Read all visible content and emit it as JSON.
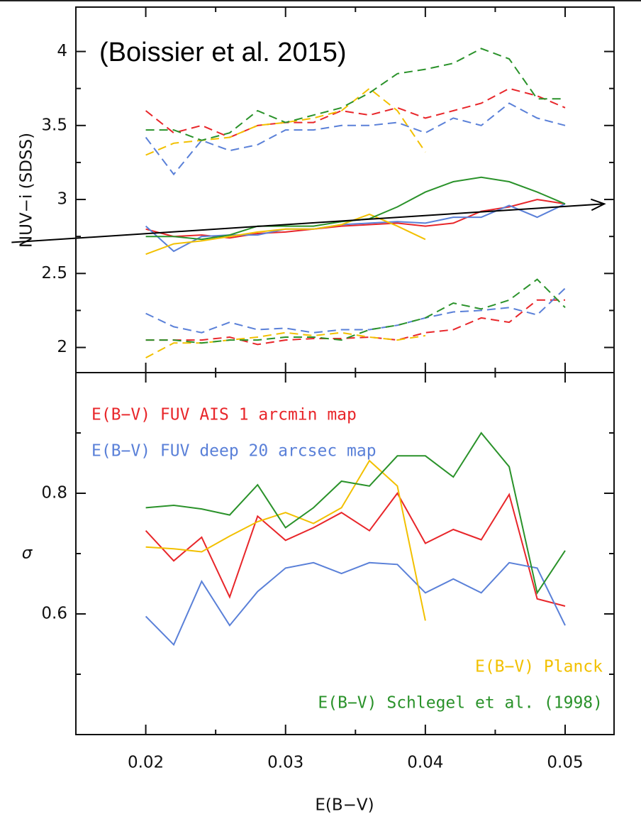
{
  "chart_data": [
    {
      "type": "line",
      "annotation": "(Boissier et al. 2015)",
      "y_label": "NUV−i (SDSS)",
      "xlim": [
        0.015,
        0.0535
      ],
      "ylim": [
        1.83,
        4.3
      ],
      "xticks": [
        0.02,
        0.03,
        0.04,
        0.05
      ],
      "xminorticks": [
        0.025,
        0.035,
        0.045
      ],
      "show_xtick_labels": false,
      "yticks": [
        2,
        2.5,
        3,
        3.5,
        4
      ],
      "yminorticks": [
        2.25,
        2.75,
        3.25,
        3.75
      ],
      "x": [
        0.02,
        0.022,
        0.024,
        0.026,
        0.028,
        0.03,
        0.032,
        0.034,
        0.036,
        0.038,
        0.04,
        0.042,
        0.044,
        0.046,
        0.048,
        0.05
      ],
      "series": [
        {
          "color": "#e8262a",
          "dash": true,
          "values": [
            3.6,
            3.45,
            3.5,
            3.42,
            3.5,
            3.52,
            3.52,
            3.6,
            3.57,
            3.62,
            3.55,
            3.6,
            3.65,
            3.75,
            3.7,
            3.62
          ]
        },
        {
          "color": "#5a80d8",
          "dash": true,
          "values": [
            3.42,
            3.17,
            3.4,
            3.33,
            3.37,
            3.47,
            3.47,
            3.5,
            3.5,
            3.52,
            3.45,
            3.55,
            3.5,
            3.65,
            3.55,
            3.5
          ]
        },
        {
          "color": "#f2c000",
          "dash": true,
          "values": [
            3.3,
            3.38,
            3.4,
            3.42,
            3.5,
            3.52,
            3.55,
            3.6,
            3.75,
            3.6,
            3.32,
            null,
            null,
            null,
            null,
            null
          ]
        },
        {
          "color": "#2a922a",
          "dash": true,
          "values": [
            3.47,
            3.47,
            3.4,
            3.45,
            3.6,
            3.52,
            3.57,
            3.62,
            3.72,
            3.85,
            3.88,
            3.92,
            4.02,
            3.95,
            3.68,
            3.68
          ]
        },
        {
          "color": "#e8262a",
          "dash": false,
          "values": [
            2.8,
            2.75,
            2.76,
            2.74,
            2.77,
            2.78,
            2.8,
            2.82,
            2.83,
            2.84,
            2.82,
            2.84,
            2.92,
            2.95,
            3.0,
            2.97
          ]
        },
        {
          "color": "#5a80d8",
          "dash": false,
          "values": [
            2.82,
            2.65,
            2.75,
            2.76,
            2.76,
            2.8,
            2.8,
            2.83,
            2.84,
            2.85,
            2.84,
            2.88,
            2.88,
            2.96,
            2.88,
            2.97
          ]
        },
        {
          "color": "#f2c000",
          "dash": false,
          "values": [
            2.63,
            2.7,
            2.72,
            2.75,
            2.78,
            2.8,
            2.8,
            2.83,
            2.9,
            2.82,
            2.73,
            null,
            null,
            null,
            null,
            null
          ]
        },
        {
          "color": "#2a922a",
          "dash": false,
          "values": [
            2.75,
            2.75,
            2.73,
            2.76,
            2.82,
            2.82,
            2.82,
            2.85,
            2.87,
            2.95,
            3.05,
            3.12,
            3.15,
            3.12,
            3.05,
            2.97
          ]
        },
        {
          "color": "#e8262a",
          "dash": true,
          "values": [
            2.05,
            2.05,
            2.05,
            2.07,
            2.02,
            2.05,
            2.06,
            2.06,
            2.07,
            2.05,
            2.1,
            2.12,
            2.2,
            2.17,
            2.32,
            2.32
          ]
        },
        {
          "color": "#5a80d8",
          "dash": true,
          "values": [
            2.23,
            2.14,
            2.1,
            2.17,
            2.12,
            2.13,
            2.1,
            2.12,
            2.12,
            2.15,
            2.2,
            2.24,
            2.25,
            2.27,
            2.22,
            2.4
          ]
        },
        {
          "color": "#f2c000",
          "dash": true,
          "values": [
            1.93,
            2.03,
            2.03,
            2.05,
            2.07,
            2.1,
            2.08,
            2.1,
            2.07,
            2.05,
            2.08,
            null,
            null,
            null,
            null,
            null
          ]
        },
        {
          "color": "#2a922a",
          "dash": true,
          "values": [
            2.05,
            2.05,
            2.03,
            2.05,
            2.05,
            2.07,
            2.07,
            2.05,
            2.12,
            2.15,
            2.2,
            2.3,
            2.26,
            2.32,
            2.46,
            2.27
          ]
        }
      ],
      "arrow": {
        "x": [
          0.0104,
          0.0528
        ],
        "y": [
          2.71,
          2.97
        ],
        "color": "#000000"
      }
    },
    {
      "type": "line",
      "x_label": "E(B−V)",
      "y_label": "σ",
      "xlim": [
        0.015,
        0.0535
      ],
      "ylim": [
        0.4,
        1.0
      ],
      "xticks": [
        0.02,
        0.03,
        0.04,
        0.05
      ],
      "xminorticks": [
        0.025,
        0.035,
        0.045
      ],
      "show_xtick_labels": true,
      "yticks": [
        0.6,
        0.8
      ],
      "yminorticks": [
        0.5,
        0.7,
        0.9
      ],
      "x": [
        0.02,
        0.022,
        0.024,
        0.026,
        0.028,
        0.03,
        0.032,
        0.034,
        0.036,
        0.038,
        0.04,
        0.042,
        0.044,
        0.046,
        0.048,
        0.05
      ],
      "series": [
        {
          "name": "E(B−V) FUV AIS 1 arcmin map",
          "color": "#e8262a",
          "legend": "top-left",
          "values": [
            0.738,
            0.688,
            0.727,
            0.628,
            0.762,
            0.722,
            0.743,
            0.768,
            0.738,
            0.8,
            0.717,
            0.74,
            0.723,
            0.798,
            0.625,
            0.613
          ]
        },
        {
          "name": "E(B−V) FUV deep 20 arcsec map",
          "color": "#5a80d8",
          "legend": "top-left",
          "values": [
            0.596,
            0.549,
            0.654,
            0.581,
            0.637,
            0.676,
            0.685,
            0.667,
            0.685,
            0.682,
            0.635,
            0.658,
            0.635,
            0.685,
            0.676,
            0.581
          ]
        },
        {
          "name": "E(B−V) Planck",
          "color": "#f2c000",
          "legend": "bottom-right",
          "values": [
            0.711,
            0.708,
            0.703,
            0.729,
            0.753,
            0.768,
            0.75,
            0.776,
            0.854,
            0.812,
            0.589,
            null,
            null,
            null,
            null,
            null
          ]
        },
        {
          "name": "E(B−V) Schlegel et al. (1998)",
          "color": "#2a922a",
          "legend": "bottom-right",
          "values": [
            0.776,
            0.78,
            0.774,
            0.764,
            0.814,
            0.743,
            0.776,
            0.82,
            0.812,
            0.862,
            0.862,
            0.827,
            0.9,
            0.844,
            0.635,
            0.705
          ]
        }
      ]
    }
  ]
}
